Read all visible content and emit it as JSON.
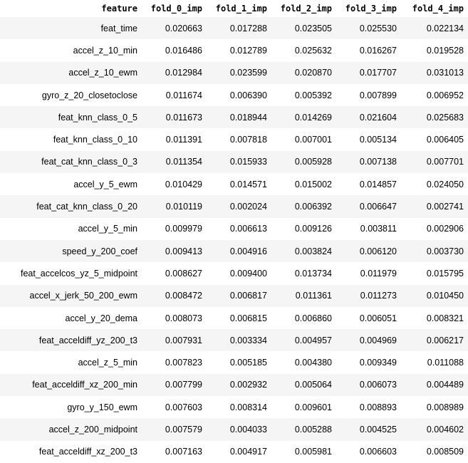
{
  "table": {
    "columns": [
      "feature",
      "fold_0_imp",
      "fold_1_imp",
      "fold_2_imp",
      "fold_3_imp",
      "fold_4_imp"
    ],
    "rows": [
      [
        "feat_time",
        "0.020663",
        "0.017288",
        "0.023505",
        "0.025530",
        "0.022134"
      ],
      [
        "accel_z_10_min",
        "0.016486",
        "0.012789",
        "0.025632",
        "0.016267",
        "0.019528"
      ],
      [
        "accel_z_10_ewm",
        "0.012984",
        "0.023599",
        "0.020870",
        "0.017707",
        "0.031013"
      ],
      [
        "gyro_z_20_closetoclose",
        "0.011674",
        "0.006390",
        "0.005392",
        "0.007899",
        "0.006952"
      ],
      [
        "feat_knn_class_0_5",
        "0.011673",
        "0.018944",
        "0.014269",
        "0.021604",
        "0.025683"
      ],
      [
        "feat_knn_class_0_10",
        "0.011391",
        "0.007818",
        "0.007001",
        "0.005134",
        "0.006405"
      ],
      [
        "feat_cat_knn_class_0_3",
        "0.011354",
        "0.015933",
        "0.005928",
        "0.007138",
        "0.007701"
      ],
      [
        "accel_y_5_ewm",
        "0.010429",
        "0.014571",
        "0.015002",
        "0.014857",
        "0.024050"
      ],
      [
        "feat_cat_knn_class_0_20",
        "0.010119",
        "0.002024",
        "0.006392",
        "0.006647",
        "0.002741"
      ],
      [
        "accel_y_5_min",
        "0.009979",
        "0.006613",
        "0.009126",
        "0.003811",
        "0.002906"
      ],
      [
        "speed_y_200_coef",
        "0.009413",
        "0.004916",
        "0.003824",
        "0.006120",
        "0.003730"
      ],
      [
        "feat_accelcos_yz_5_midpoint",
        "0.008627",
        "0.009400",
        "0.013734",
        "0.011979",
        "0.015795"
      ],
      [
        "accel_x_jerk_50_200_ewm",
        "0.008472",
        "0.006817",
        "0.011361",
        "0.011273",
        "0.010450"
      ],
      [
        "accel_y_20_dema",
        "0.008073",
        "0.006815",
        "0.006860",
        "0.006051",
        "0.008321"
      ],
      [
        "feat_acceldiff_yz_200_t3",
        "0.007931",
        "0.003334",
        "0.004957",
        "0.004969",
        "0.006217"
      ],
      [
        "accel_z_5_min",
        "0.007823",
        "0.005185",
        "0.004380",
        "0.009349",
        "0.011088"
      ],
      [
        "feat_acceldiff_xz_200_min",
        "0.007799",
        "0.002932",
        "0.005064",
        "0.006073",
        "0.004489"
      ],
      [
        "gyro_y_150_ewm",
        "0.007603",
        "0.008314",
        "0.009601",
        "0.008893",
        "0.008989"
      ],
      [
        "accel_z_200_midpoint",
        "0.007579",
        "0.004033",
        "0.005288",
        "0.004525",
        "0.004602"
      ],
      [
        "feat_acceldiff_xz_200_t3",
        "0.007163",
        "0.004917",
        "0.005981",
        "0.006603",
        "0.008509"
      ]
    ]
  }
}
